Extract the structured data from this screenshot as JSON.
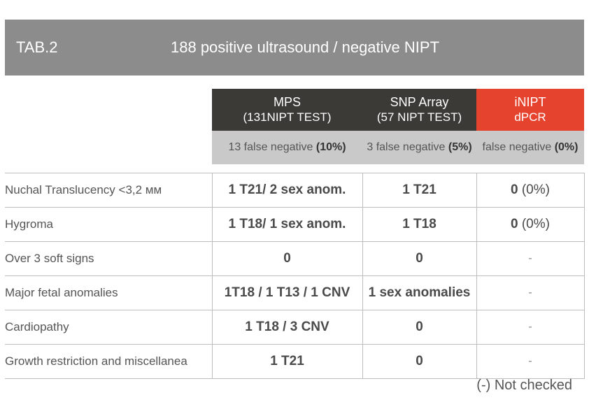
{
  "header": {
    "tab_id": "TAB.2",
    "title": "188 positive ultrasound / negative NIPT"
  },
  "columns": [
    {
      "name": "MPS",
      "sub": "(131NIPT TEST)",
      "false_negative_prefix": "13 false negative",
      "false_negative_value": "(10%)"
    },
    {
      "name": "SNP Array",
      "sub": "(57 NIPT TEST)",
      "false_negative_prefix": "3 false negative",
      "false_negative_value": "(5%)"
    },
    {
      "name": "iNIPT",
      "sub": "dPCR",
      "false_negative_prefix": "false negative",
      "false_negative_value": "(0%)"
    }
  ],
  "rows": [
    {
      "label": "Nuchal Translucency <3,2 мм",
      "mps": "1 T21/ 2 sex anom.",
      "snp": "1 T21",
      "inipt_bold": "0",
      "inipt_plain": " (0%)"
    },
    {
      "label": "Hygroma",
      "mps": "1 T18/ 1 sex anom.",
      "snp": "1 T18",
      "inipt_bold": "0",
      "inipt_plain": " (0%)"
    },
    {
      "label": "Over 3 soft signs",
      "mps": "0",
      "snp": "0",
      "inipt_bold": "",
      "inipt_plain": "-"
    },
    {
      "label": "Major fetal anomalies",
      "mps": "1T18 / 1 T13 / 1 CNV",
      "snp": "1 sex anomalies",
      "inipt_bold": "",
      "inipt_plain": "-"
    },
    {
      "label": "Cardiopathy",
      "mps": "1 T18 / 3 CNV",
      "snp": "0",
      "inipt_bold": "",
      "inipt_plain": "-"
    },
    {
      "label": "Growth restriction and miscellanea",
      "mps": "1 T21",
      "snp": "0",
      "inipt_bold": "",
      "inipt_plain": "-"
    }
  ],
  "footnote": "(-) Not checked",
  "colors": {
    "header_bar": "#8c8c8c",
    "dark_header": "#3b3a37",
    "accent_red": "#e5432e",
    "subheader": "#c9c9c9"
  }
}
